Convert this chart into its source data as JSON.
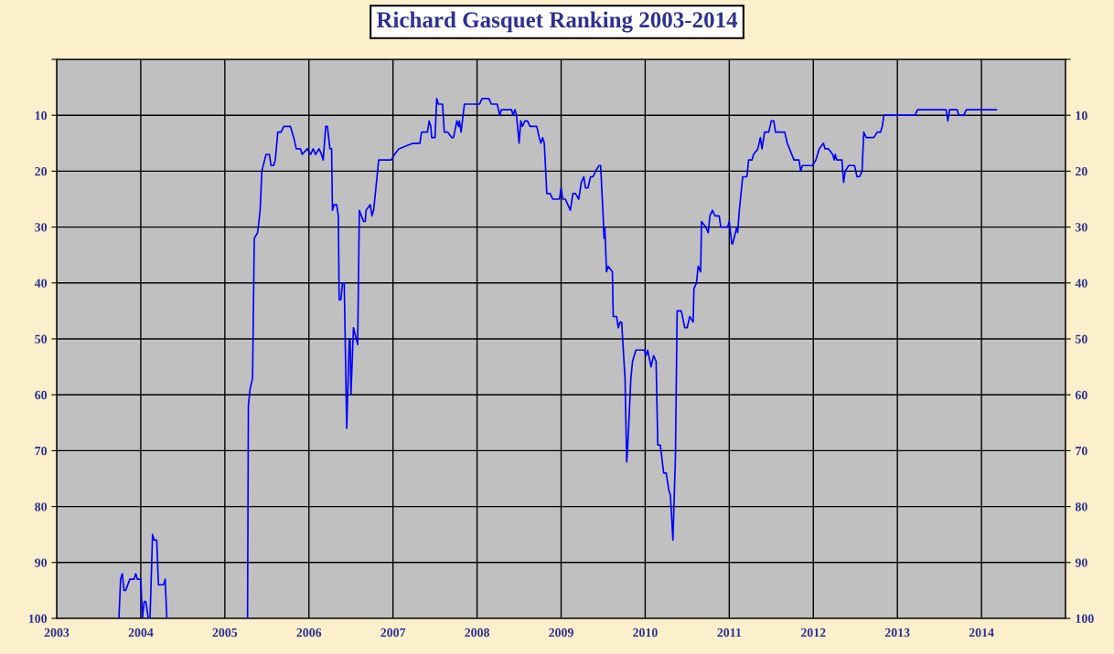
{
  "chart_data": {
    "type": "line",
    "title": "Richard Gasquet Ranking 2003-2014",
    "x": [
      2003.74,
      2003.76,
      2003.78,
      2003.8,
      2003.82,
      2003.87,
      2003.92,
      2003.94,
      2003.96,
      2004.0,
      2004.02,
      2004.04,
      2004.06,
      2004.09,
      2004.1,
      2004.11,
      2004.14,
      2004.16,
      2004.19,
      2004.21,
      2004.27,
      2004.29,
      2004.31,
      2004.32,
      2005.27,
      2005.28,
      2005.3,
      2005.33,
      2005.35,
      2005.39,
      2005.42,
      2005.44,
      2005.49,
      2005.53,
      2005.55,
      2005.58,
      2005.6,
      2005.63,
      2005.67,
      2005.7,
      2005.78,
      2005.82,
      2005.85,
      2005.9,
      2005.92,
      2005.98,
      2006.02,
      2006.05,
      2006.08,
      2006.12,
      2006.15,
      2006.17,
      2006.2,
      2006.22,
      2006.25,
      2006.27,
      2006.28,
      2006.3,
      2006.33,
      2006.35,
      2006.36,
      2006.38,
      2006.4,
      2006.42,
      2006.45,
      2006.48,
      2006.49,
      2006.5,
      2006.53,
      2006.58,
      2006.6,
      2006.65,
      2006.67,
      2006.68,
      2006.73,
      2006.75,
      2006.77,
      2006.83,
      2006.98,
      2007.02,
      2007.07,
      2007.24,
      2007.32,
      2007.34,
      2007.41,
      2007.43,
      2007.45,
      2007.46,
      2007.5,
      2007.52,
      2007.54,
      2007.59,
      2007.61,
      2007.65,
      2007.7,
      2007.72,
      2007.76,
      2007.78,
      2007.79,
      2007.81,
      2007.85,
      2008.03,
      2008.06,
      2008.14,
      2008.17,
      2008.24,
      2008.27,
      2008.29,
      2008.41,
      2008.43,
      2008.45,
      2008.47,
      2008.5,
      2008.52,
      2008.54,
      2008.57,
      2008.6,
      2008.63,
      2008.71,
      2008.74,
      2008.76,
      2008.78,
      2008.8,
      2008.83,
      2008.87,
      2008.9,
      2008.98,
      2009.0,
      2009.02,
      2009.05,
      2009.08,
      2009.11,
      2009.14,
      2009.17,
      2009.21,
      2009.24,
      2009.27,
      2009.29,
      2009.32,
      2009.35,
      2009.38,
      2009.41,
      2009.45,
      2009.47,
      2009.5,
      2009.51,
      2009.52,
      2009.54,
      2009.56,
      2009.61,
      2009.62,
      2009.66,
      2009.68,
      2009.7,
      2009.72,
      2009.76,
      2009.78,
      2009.79,
      2009.83,
      2009.85,
      2009.89,
      2009.99,
      2010.01,
      2010.03,
      2010.07,
      2010.1,
      2010.13,
      2010.15,
      2010.18,
      2010.22,
      2010.25,
      2010.28,
      2010.3,
      2010.33,
      2010.36,
      2010.38,
      2010.43,
      2010.47,
      2010.5,
      2010.53,
      2010.57,
      2010.58,
      2010.61,
      2010.63,
      2010.66,
      2010.67,
      2010.72,
      2010.75,
      2010.77,
      2010.8,
      2010.83,
      2010.88,
      2010.9,
      2010.98,
      2011.0,
      2011.03,
      2011.04,
      2011.09,
      2011.1,
      2011.12,
      2011.16,
      2011.21,
      2011.23,
      2011.27,
      2011.29,
      2011.34,
      2011.37,
      2011.39,
      2011.42,
      2011.47,
      2011.5,
      2011.53,
      2011.55,
      2011.66,
      2011.69,
      2011.77,
      2011.83,
      2011.85,
      2011.87,
      2011.99,
      2012.03,
      2012.07,
      2012.12,
      2012.14,
      2012.18,
      2012.23,
      2012.25,
      2012.26,
      2012.28,
      2012.34,
      2012.36,
      2012.38,
      2012.42,
      2012.49,
      2012.52,
      2012.55,
      2012.58,
      2012.6,
      2012.63,
      2012.72,
      2012.76,
      2012.8,
      2012.82,
      2012.84,
      2013.21,
      2013.24,
      2013.58,
      2013.6,
      2013.62,
      2013.71,
      2013.73,
      2013.79,
      2013.82,
      2014.18
    ],
    "values": [
      100,
      93,
      92,
      95,
      95,
      93,
      93,
      92,
      93,
      93,
      100,
      97,
      97,
      100,
      null,
      100,
      85,
      86,
      86,
      94,
      94,
      93,
      100,
      null,
      100,
      62,
      59,
      57,
      32,
      31,
      27,
      20,
      17,
      17,
      19,
      19,
      18,
      13,
      13,
      12,
      12,
      14,
      16,
      16,
      17,
      16,
      17,
      16,
      17,
      16,
      17,
      18,
      12,
      12,
      16,
      16,
      27,
      26,
      26,
      28,
      43,
      43,
      40,
      40,
      66,
      50,
      50,
      60,
      48,
      51,
      27,
      29,
      29,
      27,
      26,
      28,
      27,
      18,
      18,
      17,
      16,
      15,
      15,
      13,
      13,
      11,
      12,
      14,
      14,
      7,
      8,
      8,
      13,
      13,
      14,
      14,
      11,
      12,
      11,
      13,
      8,
      8,
      7,
      7,
      8,
      8,
      10,
      9,
      9,
      10,
      9,
      10,
      15,
      11,
      12,
      11,
      11,
      12,
      12,
      14,
      15,
      14,
      15,
      24,
      24,
      25,
      25,
      23,
      25,
      25,
      26,
      27,
      24,
      24,
      25,
      22,
      21,
      23,
      23,
      21,
      21,
      20,
      19,
      19,
      28,
      32,
      30,
      38,
      37,
      38,
      46,
      46,
      48,
      47,
      47,
      57,
      72,
      70,
      57,
      54,
      52,
      52,
      53,
      52,
      55,
      53,
      54,
      69,
      69,
      74,
      74,
      77,
      78,
      86,
      71,
      45,
      45,
      48,
      48,
      46,
      47,
      41,
      40,
      37,
      38,
      29,
      30,
      31,
      28,
      27,
      28,
      28,
      30,
      30,
      29,
      33,
      33,
      30,
      31,
      27,
      21,
      21,
      18,
      18,
      17,
      16,
      14,
      16,
      13,
      13,
      11,
      11,
      13,
      13,
      15,
      18,
      18,
      20,
      19,
      19,
      18,
      16,
      15,
      16,
      16,
      17,
      18,
      17,
      18,
      18,
      22,
      20,
      19,
      19,
      21,
      21,
      20,
      13,
      14,
      14,
      13,
      13,
      12,
      10,
      10,
      9,
      9,
      11,
      9,
      9,
      10,
      10,
      9,
      9
    ],
    "color": "#0000ff",
    "xlim": [
      2003,
      2015
    ],
    "xticks": [
      2003,
      2004,
      2005,
      2006,
      2007,
      2008,
      2009,
      2010,
      2011,
      2012,
      2013,
      2014,
      {
        "value": 2015,
        "label": null
      }
    ],
    "ylim": [
      100,
      0
    ],
    "yticks": [
      {
        "value": 0,
        "label": null
      },
      10,
      20,
      30,
      40,
      50,
      60,
      70,
      80,
      90,
      100
    ],
    "y2lim": [
      100,
      0
    ],
    "y2ticks": [
      {
        "value": 0,
        "label": null
      },
      10,
      20,
      30,
      40,
      50,
      60,
      70,
      80,
      90,
      100
    ],
    "grid": true,
    "marker": "none",
    "line_style": "solid"
  }
}
